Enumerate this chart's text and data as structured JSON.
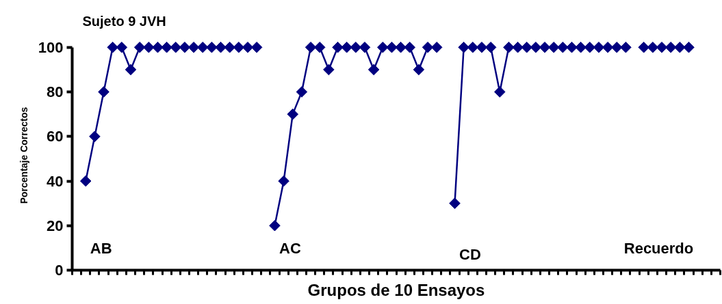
{
  "chart_data": {
    "type": "line",
    "title": "Sujeto 9    JVH",
    "xlabel": "Grupos de 10 Ensayos",
    "ylabel": "Porcentaje Correctos",
    "categories": [
      null,
      null,
      null,
      null,
      null,
      null,
      null,
      null,
      null,
      null,
      null,
      null,
      null,
      null,
      null,
      null,
      null,
      null,
      null,
      null,
      null,
      null,
      null,
      null,
      null,
      null,
      null,
      null,
      null,
      null,
      null,
      null,
      null,
      null,
      null,
      null,
      null,
      null,
      null,
      null,
      null,
      null,
      null,
      null,
      null,
      null,
      null,
      null,
      null,
      null,
      null,
      null,
      null,
      null,
      null,
      null,
      null,
      null,
      null,
      null,
      null,
      null,
      null,
      null,
      null,
      null,
      null,
      null,
      null,
      null,
      null,
      null
    ],
    "series": [
      {
        "color": "#000080",
        "values": [
          null,
          40,
          60,
          80,
          100,
          100,
          90,
          100,
          100,
          100,
          100,
          100,
          100,
          100,
          100,
          100,
          100,
          100,
          100,
          100,
          100,
          null,
          20,
          40,
          70,
          80,
          100,
          100,
          90,
          100,
          100,
          100,
          100,
          90,
          100,
          100,
          100,
          100,
          90,
          100,
          100,
          null,
          30,
          100,
          100,
          100,
          100,
          80,
          100,
          100,
          100,
          100,
          100,
          100,
          100,
          100,
          100,
          100,
          100,
          100,
          100,
          100,
          null,
          100,
          100,
          100,
          100,
          100,
          100,
          null,
          null,
          null
        ]
      }
    ],
    "annotations": [
      "AB",
      "AC",
      "CD",
      "Recuerdo"
    ],
    "ylim": [
      0,
      100
    ],
    "yticks": [
      0,
      20,
      40,
      60,
      80,
      100
    ],
    "marker": "diamond",
    "line_style": "solid",
    "grid": false,
    "tick_labels": "y"
  }
}
